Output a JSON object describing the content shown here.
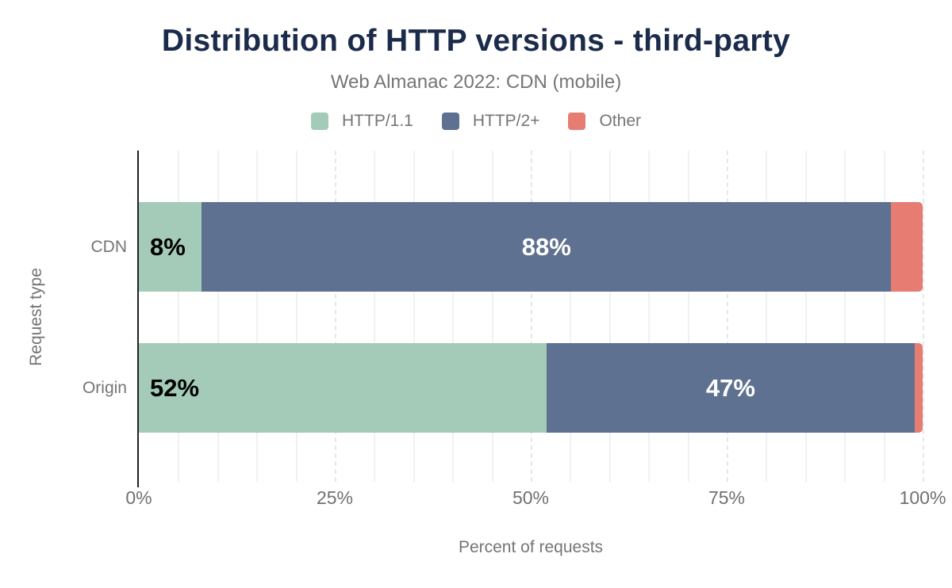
{
  "chart_data": {
    "type": "bar",
    "orientation": "horizontal",
    "stacked": true,
    "title": "Distribution of HTTP versions - third-party",
    "subtitle": "Web Almanac 2022: CDN (mobile)",
    "xlabel": "Percent of requests",
    "ylabel": "Request type",
    "categories": [
      "CDN",
      "Origin"
    ],
    "series": [
      {
        "name": "HTTP/1.1",
        "color": "#a3cbb8",
        "values": [
          8,
          52
        ],
        "labels": [
          "8%",
          "52%"
        ],
        "label_color": "#000000",
        "label_align": "left"
      },
      {
        "name": "HTTP/2+",
        "color": "#5f7190",
        "values": [
          88,
          47
        ],
        "labels": [
          "88%",
          "47%"
        ],
        "label_color": "#ffffff",
        "label_align": "center"
      },
      {
        "name": "Other",
        "color": "#e67c72",
        "values": [
          4,
          1
        ],
        "labels": [
          "",
          ""
        ],
        "label_color": "#ffffff",
        "label_align": "center"
      }
    ],
    "xlim": [
      0,
      100
    ],
    "x_ticks": [
      "0%",
      "25%",
      "50%",
      "75%",
      "100%"
    ],
    "x_tick_values": [
      0,
      25,
      50,
      75,
      100
    ],
    "grid": {
      "minor_step": 5,
      "major_step": 25,
      "minor_color": "#f1f1f1",
      "major_color": "#e7e7e7"
    },
    "legend_position": "top",
    "colors": {
      "title": "#1b2b4a",
      "muted_text": "#757575",
      "axis_line": "#212121"
    }
  }
}
